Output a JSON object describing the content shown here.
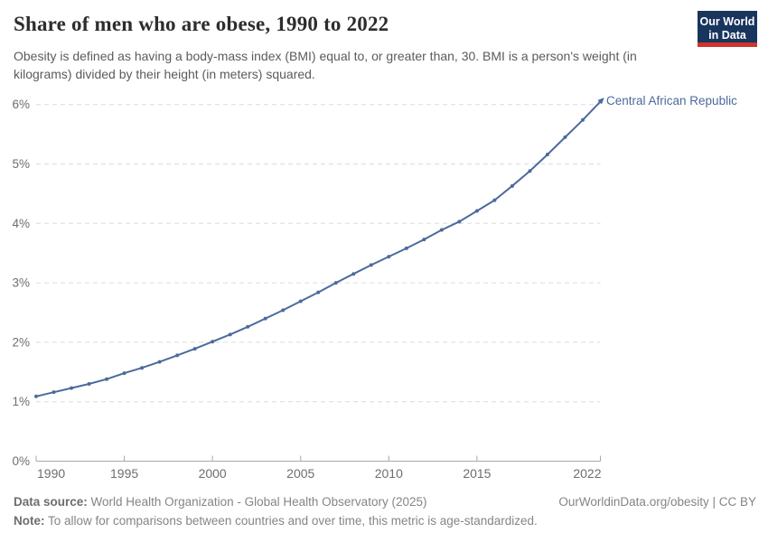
{
  "header": {
    "title": "Share of men who are obese, 1990 to 2022",
    "subtitle": "Obesity is defined as having a body-mass index (BMI) equal to, or greater than, 30. BMI is a person's weight (in kilograms) divided by their height (in meters) squared."
  },
  "logo": {
    "line1": "Our World",
    "line2": "in Data"
  },
  "chart_data": {
    "type": "line",
    "title": "Share of men who are obese, 1990 to 2022",
    "xlabel": "",
    "ylabel": "",
    "unit": "%",
    "xlim": [
      1990,
      2022
    ],
    "ylim": [
      0,
      6
    ],
    "grid": "dashed-horizontal",
    "legend": "end-of-line-label",
    "x": [
      1990,
      1991,
      1992,
      1993,
      1994,
      1995,
      1996,
      1997,
      1998,
      1999,
      2000,
      2001,
      2002,
      2003,
      2004,
      2005,
      2006,
      2007,
      2008,
      2009,
      2010,
      2011,
      2012,
      2013,
      2014,
      2015,
      2016,
      2017,
      2018,
      2019,
      2020,
      2021,
      2022
    ],
    "series": [
      {
        "name": "Central African Republic",
        "values": [
          1.09,
          1.16,
          1.23,
          1.3,
          1.38,
          1.48,
          1.57,
          1.67,
          1.78,
          1.89,
          2.01,
          2.13,
          2.26,
          2.4,
          2.54,
          2.69,
          2.84,
          3.0,
          3.15,
          3.3,
          3.44,
          3.58,
          3.73,
          3.89,
          4.03,
          4.21,
          4.39,
          4.63,
          4.88,
          5.16,
          5.45,
          5.74,
          6.05
        ]
      }
    ],
    "ytick_values": [
      0,
      1,
      2,
      3,
      4,
      5,
      6
    ],
    "ytick_labels": [
      "0%",
      "1%",
      "2%",
      "3%",
      "4%",
      "5%",
      "6%"
    ],
    "xtick_values": [
      1990,
      1995,
      2000,
      2005,
      2010,
      2015,
      2022
    ],
    "xtick_labels": [
      "1990",
      "1995",
      "2000",
      "2005",
      "2010",
      "2015",
      "2022"
    ],
    "colors": {
      "line": "#4C6A9C",
      "series_label": "#4C6A9C",
      "grid": "#dcdcdc",
      "axis": "#a9a9a9",
      "tick_text": "#6e6e6e"
    }
  },
  "footer": {
    "data_source_label": "Data source:",
    "data_source": "World Health Organization - Global Health Observatory (2025)",
    "note_label": "Note:",
    "note": "To allow for comparisons between countries and over time, this metric is age-standardized.",
    "citation": "OurWorldinData.org/obesity | CC BY"
  }
}
